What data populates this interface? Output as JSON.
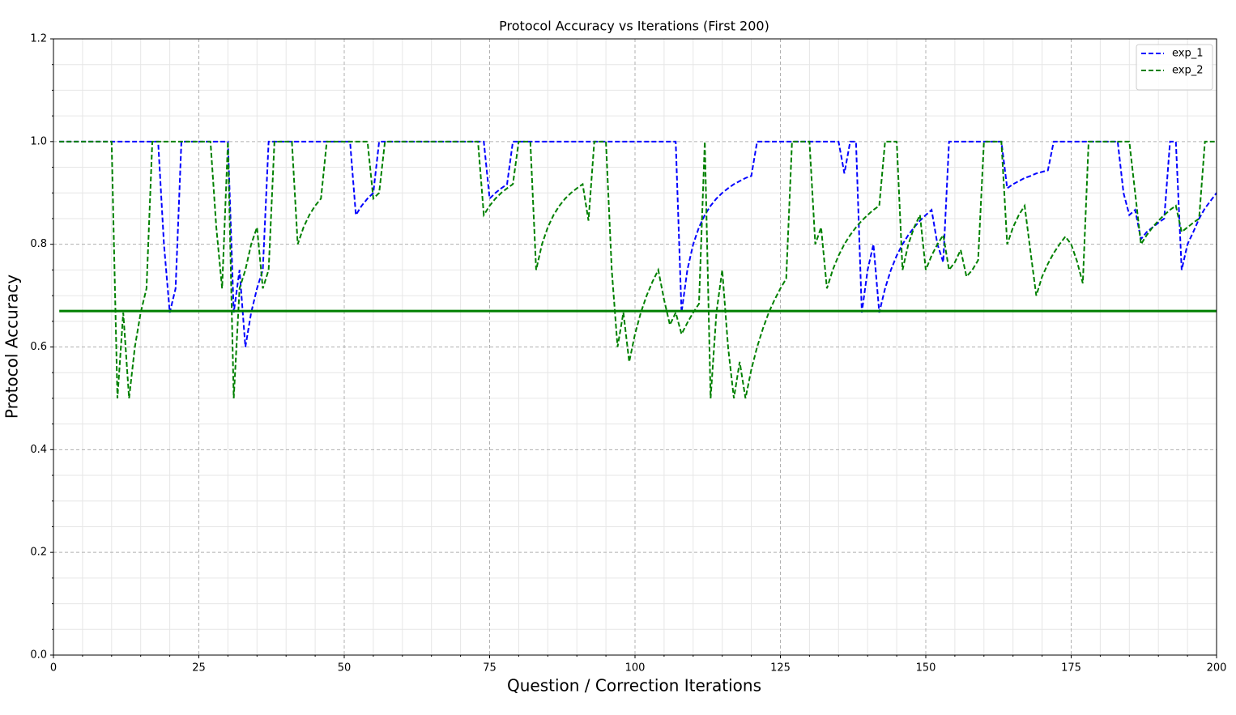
{
  "chart_data": {
    "type": "line",
    "title": "Protocol Accuracy vs Iterations (First 200)",
    "x_label": "Question / Correction Iterations",
    "y_label": "Protocol Accuracy",
    "x": [
      1,
      2,
      3,
      4,
      5,
      6,
      7,
      8,
      9,
      10,
      11,
      12,
      13,
      14,
      15,
      16,
      17,
      18,
      19,
      20,
      21,
      22,
      23,
      24,
      25,
      26,
      27,
      28,
      29,
      30,
      31,
      32,
      33,
      34,
      35,
      36,
      37,
      38,
      39,
      40,
      41,
      42,
      43,
      44,
      45,
      46,
      47,
      48,
      49,
      50,
      51,
      52,
      53,
      54,
      55,
      56,
      57,
      58,
      59,
      60,
      61,
      62,
      63,
      64,
      65,
      66,
      67,
      68,
      69,
      70,
      71,
      72,
      73,
      74,
      75,
      76,
      77,
      78,
      79,
      80,
      81,
      82,
      83,
      84,
      85,
      86,
      87,
      88,
      89,
      90,
      91,
      92,
      93,
      94,
      95,
      96,
      97,
      98,
      99,
      100,
      101,
      102,
      103,
      104,
      105,
      106,
      107,
      108,
      109,
      110,
      111,
      112,
      113,
      114,
      115,
      116,
      117,
      118,
      119,
      120,
      121,
      122,
      123,
      124,
      125,
      126,
      127,
      128,
      129,
      130,
      131,
      132,
      133,
      134,
      135,
      136,
      137,
      138,
      139,
      140,
      141,
      142,
      143,
      144,
      145,
      146,
      147,
      148,
      149,
      150,
      151,
      152,
      153,
      154,
      155,
      156,
      157,
      158,
      159,
      160,
      161,
      162,
      163,
      164,
      165,
      166,
      167,
      168,
      169,
      170,
      171,
      172,
      173,
      174,
      175,
      176,
      177,
      178,
      179,
      180,
      181,
      182,
      183,
      184,
      185,
      186,
      187,
      188,
      189,
      190,
      191,
      192,
      193,
      194,
      195,
      196,
      197,
      198,
      199,
      200
    ],
    "series": [
      {
        "name": "exp_1",
        "color": "#0000ff",
        "values": [
          1,
          1,
          1,
          1,
          1,
          1,
          1,
          1,
          1,
          1,
          1,
          1,
          1,
          1,
          1,
          1,
          1,
          1,
          0.8,
          0.667,
          0.714,
          1,
          1,
          1,
          1,
          1,
          1,
          1,
          1,
          1,
          0.667,
          0.75,
          0.6,
          0.667,
          0.714,
          0.75,
          1,
          1,
          1,
          1,
          1,
          1,
          1,
          1,
          1,
          1,
          1,
          1,
          1,
          1,
          1,
          0.857,
          0.875,
          0.889,
          0.9,
          1,
          1,
          1,
          1,
          1,
          1,
          1,
          1,
          1,
          1,
          1,
          1,
          1,
          1,
          1,
          1,
          1,
          1,
          1,
          0.889,
          0.9,
          0.909,
          0.917,
          1,
          1,
          1,
          1,
          1,
          1,
          1,
          1,
          1,
          1,
          1,
          1,
          1,
          1,
          1,
          1,
          1,
          1,
          1,
          1,
          1,
          1,
          1,
          1,
          1,
          1,
          1,
          1,
          1,
          0.667,
          0.75,
          0.8,
          0.833,
          0.857,
          0.875,
          0.889,
          0.9,
          0.909,
          0.917,
          0.923,
          0.929,
          0.933,
          1,
          1,
          1,
          1,
          1,
          1,
          1,
          1,
          1,
          1,
          1,
          1,
          1,
          1,
          1,
          0.938,
          1,
          1,
          0.667,
          0.75,
          0.8,
          0.667,
          0.714,
          0.75,
          0.778,
          0.8,
          0.818,
          0.833,
          0.846,
          0.857,
          0.867,
          0.8,
          0.765,
          1,
          1,
          1,
          1,
          1,
          1,
          1,
          1,
          1,
          1,
          0.909,
          0.917,
          0.923,
          0.929,
          0.933,
          0.938,
          0.941,
          0.944,
          1,
          1,
          1,
          1,
          1,
          1,
          1,
          1,
          1,
          1,
          1,
          1,
          0.9,
          0.857,
          0.867,
          0.81,
          0.824,
          0.833,
          0.842,
          0.85,
          1,
          1,
          0.75,
          0.8,
          0.824,
          0.85,
          0.87,
          0.885,
          0.9
        ]
      },
      {
        "name": "exp_2",
        "color": "#008000",
        "values": [
          1,
          1,
          1,
          1,
          1,
          1,
          1,
          1,
          1,
          1,
          0.5,
          0.667,
          0.5,
          0.6,
          0.667,
          0.714,
          1,
          1,
          1,
          1,
          1,
          1,
          1,
          1,
          1,
          1,
          1,
          0.833,
          0.714,
          1,
          0.5,
          0.714,
          0.75,
          0.8,
          0.833,
          0.714,
          0.75,
          1,
          1,
          1,
          1,
          0.8,
          0.833,
          0.857,
          0.875,
          0.889,
          1,
          1,
          1,
          1,
          1,
          1,
          1,
          1,
          0.889,
          0.9,
          1,
          1,
          1,
          1,
          1,
          1,
          1,
          1,
          1,
          1,
          1,
          1,
          1,
          1,
          1,
          1,
          1,
          0.857,
          0.875,
          0.889,
          0.9,
          0.909,
          0.917,
          1,
          1,
          1,
          0.75,
          0.8,
          0.833,
          0.857,
          0.875,
          0.889,
          0.9,
          0.909,
          0.917,
          0.846,
          1,
          1,
          1,
          0.75,
          0.6,
          0.667,
          0.571,
          0.625,
          0.667,
          0.7,
          0.727,
          0.75,
          0.692,
          0.643,
          0.667,
          0.625,
          0.647,
          0.667,
          0.684,
          1,
          0.5,
          0.667,
          0.75,
          0.6,
          0.5,
          0.571,
          0.5,
          0.556,
          0.6,
          0.636,
          0.667,
          0.692,
          0.714,
          0.733,
          1,
          1,
          1,
          1,
          0.8,
          0.833,
          0.714,
          0.75,
          0.778,
          0.8,
          0.818,
          0.833,
          0.846,
          0.857,
          0.867,
          0.875,
          1,
          1,
          1,
          0.75,
          0.8,
          0.833,
          0.857,
          0.75,
          0.778,
          0.8,
          0.818,
          0.75,
          0.765,
          0.789,
          0.737,
          0.75,
          0.769,
          1,
          1,
          1,
          1,
          0.8,
          0.833,
          0.857,
          0.875,
          0.786,
          0.7,
          0.737,
          0.762,
          0.783,
          0.8,
          0.815,
          0.8,
          0.767,
          0.724,
          1,
          1,
          1,
          1,
          1,
          1,
          1,
          1,
          0.9,
          0.8,
          0.818,
          0.833,
          0.846,
          0.857,
          0.867,
          0.875,
          0.824,
          0.833,
          0.842,
          0.85,
          1,
          1,
          1
        ]
      }
    ],
    "reference_line": {
      "value": 0.67,
      "color": "#007f00"
    },
    "xlim": [
      0,
      200
    ],
    "xticks": [
      0,
      25,
      50,
      75,
      100,
      125,
      150,
      175,
      200
    ],
    "ylim": [
      0,
      1.2
    ],
    "yticks": [
      {
        "value": 0,
        "label": "0.0"
      },
      {
        "value": 0.2,
        "label": "0.2"
      },
      {
        "value": 0.4,
        "label": "0.4"
      },
      {
        "value": 0.6,
        "label": "0.6"
      },
      {
        "value": 0.8,
        "label": "0.8"
      },
      {
        "value": 1,
        "label": "1.0"
      },
      {
        "value": 1.2,
        "label": "1.2"
      }
    ],
    "grid": true,
    "minor_grid": true,
    "legend": "upper right"
  }
}
